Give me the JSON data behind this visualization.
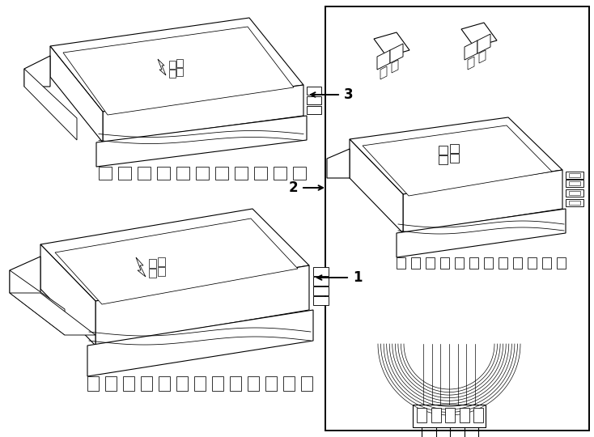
{
  "bg_color": "#ffffff",
  "line_color": "#000000",
  "lw": 0.8,
  "lw_thick": 1.4,
  "fig_width": 7.34,
  "fig_height": 5.4,
  "dpi": 100
}
